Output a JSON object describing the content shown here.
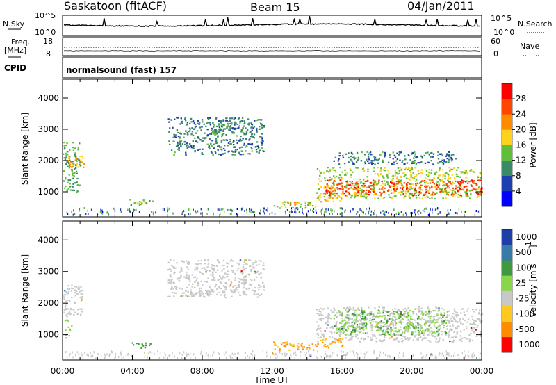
{
  "header": {
    "station": "Saskatoon (fitACF)",
    "beam": "Beam 15",
    "date": "04/Jan/2011"
  },
  "noise_panel": {
    "left_label": "N.Sky",
    "left_ticks": [
      "10^5",
      "10^0"
    ],
    "right_ticks": [
      "10^5",
      "10^0"
    ],
    "right_label": "N.Search"
  },
  "freq_panel": {
    "left_label_1": "Freq.",
    "left_label_2": "[MHz]",
    "left_ticks": [
      "18",
      "8"
    ],
    "right_ticks": [
      "60",
      "0"
    ],
    "right_label": "Nave"
  },
  "cpid_panel": {
    "label": "CPID",
    "program": "normalsound (fast) 157"
  },
  "colors": {
    "power_scale": [
      "#0000ff",
      "#1e3fb0",
      "#3a8a66",
      "#5fbf3a",
      "#ffd21e",
      "#ff8c00",
      "#ff4500",
      "#ff0000"
    ],
    "velocity_scale": [
      "#1f3fa8",
      "#3a7aa8",
      "#3f9a3f",
      "#8ad64a",
      "#c8c8c8",
      "#ffc81e",
      "#ff8c00",
      "#ff0000"
    ]
  },
  "chart_data": [
    {
      "type": "heatmap",
      "title": "Power",
      "xlabel": "Time UT",
      "ylabel": "Slant Range [km]",
      "x_ticks": [
        "00:00",
        "04:00",
        "08:00",
        "12:00",
        "16:00",
        "20:00",
        "00:00"
      ],
      "y_ticks": [
        1000,
        2000,
        3000,
        4000
      ],
      "ylim": [
        200,
        4600
      ],
      "xlim_hours": [
        0,
        24
      ],
      "colorbar": {
        "label": "Power [dB]",
        "ticks": [
          4,
          8,
          12,
          16,
          20,
          24,
          28
        ],
        "range": [
          0,
          32
        ]
      },
      "regions": [
        {
          "t": [
            0.0,
            1.0
          ],
          "r": [
            1000,
            2600
          ],
          "value": 12
        },
        {
          "t": [
            0.3,
            1.2
          ],
          "r": [
            1800,
            2200
          ],
          "value": 20
        },
        {
          "t": [
            3.8,
            5.2
          ],
          "r": [
            600,
            800
          ],
          "value": 14
        },
        {
          "t": [
            6.0,
            11.5
          ],
          "r": [
            2200,
            3400
          ],
          "value": 8
        },
        {
          "t": [
            8.5,
            10.0
          ],
          "r": [
            2800,
            3200
          ],
          "value": 12
        },
        {
          "t": [
            12.0,
            14.5
          ],
          "r": [
            500,
            700
          ],
          "value": 16
        },
        {
          "t": [
            12.5,
            13.5
          ],
          "r": [
            600,
            700
          ],
          "value": 24
        },
        {
          "t": [
            14.5,
            16.0
          ],
          "r": [
            700,
            1000
          ],
          "value": 20
        },
        {
          "t": [
            14.5,
            24.0
          ],
          "r": [
            800,
            1800
          ],
          "value": 16
        },
        {
          "t": [
            15.0,
            24.0
          ],
          "r": [
            900,
            1400
          ],
          "value": 28
        },
        {
          "t": [
            15.5,
            22.5
          ],
          "r": [
            1900,
            2300
          ],
          "value": 8
        }
      ]
    },
    {
      "type": "heatmap",
      "title": "Velocity",
      "xlabel": "Time UT",
      "ylabel": "Slant Range [km]",
      "x_ticks": [
        "00:00",
        "04:00",
        "08:00",
        "12:00",
        "16:00",
        "20:00",
        "00:00"
      ],
      "y_ticks": [
        1000,
        2000,
        3000,
        4000
      ],
      "ylim": [
        200,
        4600
      ],
      "xlim_hours": [
        0,
        24
      ],
      "colorbar": {
        "label": "Velocity [m s",
        "ticks": [
          1000,
          500,
          100,
          25,
          -25,
          -100,
          -500,
          -1000
        ]
      },
      "regions": [
        {
          "t": [
            0.0,
            1.2
          ],
          "r": [
            1600,
            2600
          ],
          "value": 0
        },
        {
          "t": [
            0.1,
            0.5
          ],
          "r": [
            900,
            1500
          ],
          "value": 300
        },
        {
          "t": [
            3.8,
            5.0
          ],
          "r": [
            600,
            800
          ],
          "value": 600
        },
        {
          "t": [
            6.0,
            11.5
          ],
          "r": [
            2200,
            3400
          ],
          "value": 0
        },
        {
          "t": [
            12.0,
            14.5
          ],
          "r": [
            500,
            800
          ],
          "value": -300
        },
        {
          "t": [
            14.5,
            16.0
          ],
          "r": [
            600,
            900
          ],
          "value": -300
        },
        {
          "t": [
            14.5,
            24.0
          ],
          "r": [
            800,
            1900
          ],
          "value": 0
        },
        {
          "t": [
            15.5,
            22.0
          ],
          "r": [
            1000,
            1800
          ],
          "value": 300
        }
      ]
    }
  ]
}
